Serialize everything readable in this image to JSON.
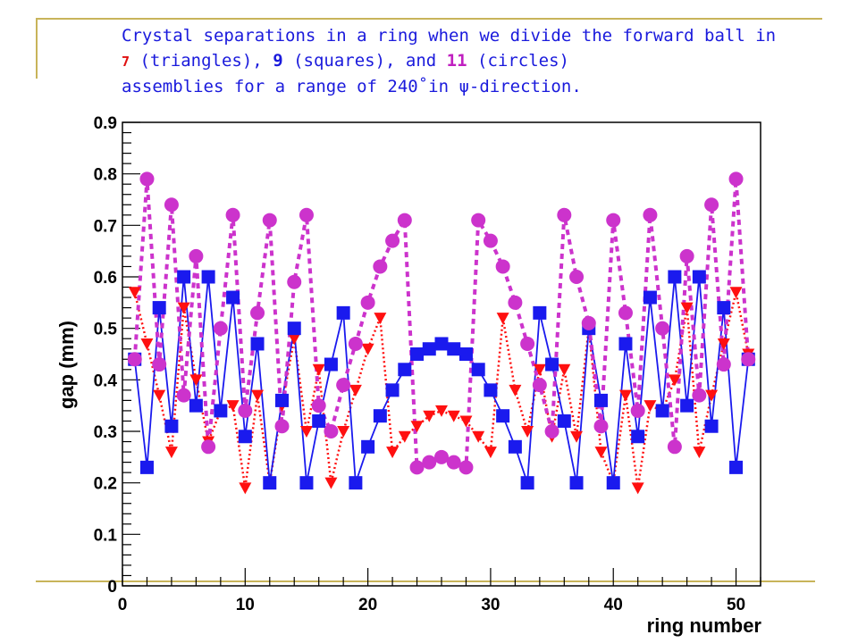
{
  "slide": {
    "title_line1": "Crystal separations in a ring when we divide the forward ball in",
    "title_n7": "7",
    "title_part2": " (triangles), ",
    "title_n9": "9",
    "title_part3": " (squares), and ",
    "title_n11": "11",
    "title_part4": " (circles)",
    "title_line3": "assemblies for a range of 240˚in ψ-direction."
  },
  "colors": {
    "triangles": "#ff1010",
    "squares": "#1a1aee",
    "circles": "#cc33cc",
    "frame": "#c8b45a"
  },
  "chart_data": {
    "type": "scatter",
    "xlabel": "ring number",
    "ylabel": "gap (mm)",
    "xlim": [
      0,
      52
    ],
    "ylim": [
      0,
      0.9
    ],
    "xticks": [
      0,
      10,
      20,
      30,
      40,
      50
    ],
    "yticks": [
      0,
      0.1,
      0.2,
      0.3,
      0.4,
      0.5,
      0.6,
      0.7,
      0.8,
      0.9
    ],
    "grid": false,
    "series": [
      {
        "marker": "triangle",
        "line": "dotted",
        "x": [
          1,
          2,
          3,
          4,
          5,
          6,
          7,
          8,
          9,
          10,
          11,
          12,
          13,
          14,
          15,
          16,
          17,
          18,
          19,
          20,
          21,
          22,
          23,
          24,
          25,
          26,
          27,
          28,
          29,
          30,
          31,
          32,
          33,
          34,
          35,
          36,
          37,
          38,
          39,
          40,
          41,
          42,
          43,
          44,
          45,
          46,
          47,
          48,
          49,
          50,
          51
        ],
        "values": [
          0.57,
          0.47,
          0.37,
          0.26,
          0.54,
          0.4,
          0.28,
          0.34,
          0.35,
          0.19,
          0.37,
          0.2,
          0.35,
          0.48,
          0.3,
          0.42,
          0.2,
          0.3,
          0.38,
          0.46,
          0.52,
          0.26,
          0.29,
          0.31,
          0.33,
          0.34,
          0.33,
          0.32,
          0.29,
          0.26,
          0.52,
          0.38,
          0.3,
          0.42,
          0.29,
          0.42,
          0.29,
          0.5,
          0.26,
          0.2,
          0.37,
          0.19,
          0.35,
          0.34,
          0.4,
          0.54,
          0.26,
          0.37,
          0.47,
          0.57,
          0.45
        ]
      },
      {
        "marker": "square",
        "line": "solid",
        "x": [
          1,
          2,
          3,
          4,
          5,
          6,
          7,
          8,
          9,
          10,
          11,
          12,
          13,
          14,
          15,
          16,
          17,
          18,
          19,
          20,
          21,
          22,
          23,
          24,
          25,
          26,
          27,
          28,
          29,
          30,
          31,
          32,
          33,
          34,
          35,
          36,
          37,
          38,
          39,
          40,
          41,
          42,
          43,
          44,
          45,
          46,
          47,
          48,
          49,
          50,
          51
        ],
        "values": [
          0.44,
          0.23,
          0.54,
          0.31,
          0.6,
          0.35,
          0.6,
          0.34,
          0.56,
          0.29,
          0.47,
          0.2,
          0.36,
          0.5,
          0.2,
          0.32,
          0.43,
          0.53,
          0.2,
          0.27,
          0.33,
          0.38,
          0.42,
          0.45,
          0.46,
          0.47,
          0.46,
          0.45,
          0.42,
          0.38,
          0.33,
          0.27,
          0.2,
          0.53,
          0.43,
          0.32,
          0.2,
          0.5,
          0.36,
          0.2,
          0.47,
          0.29,
          0.56,
          0.34,
          0.6,
          0.35,
          0.6,
          0.31,
          0.54,
          0.23,
          0.44
        ]
      },
      {
        "marker": "circle",
        "line": "dashed",
        "x": [
          1,
          2,
          3,
          4,
          5,
          6,
          7,
          8,
          9,
          10,
          11,
          12,
          13,
          14,
          15,
          16,
          17,
          18,
          19,
          20,
          21,
          22,
          23,
          24,
          25,
          26,
          27,
          28,
          29,
          30,
          31,
          32,
          33,
          34,
          35,
          36,
          37,
          38,
          39,
          40,
          41,
          42,
          43,
          44,
          45,
          46,
          47,
          48,
          49,
          50,
          51
        ],
        "values": [
          0.44,
          0.79,
          0.43,
          0.74,
          0.37,
          0.64,
          0.27,
          0.5,
          0.72,
          0.34,
          0.53,
          0.71,
          0.31,
          0.59,
          0.72,
          0.35,
          0.3,
          0.39,
          0.47,
          0.55,
          0.62,
          0.67,
          0.71,
          0.23,
          0.24,
          0.25,
          0.24,
          0.23,
          0.71,
          0.67,
          0.62,
          0.55,
          0.47,
          0.39,
          0.3,
          0.72,
          0.6,
          0.51,
          0.31,
          0.71,
          0.53,
          0.34,
          0.72,
          0.5,
          0.27,
          0.64,
          0.37,
          0.74,
          0.43,
          0.79,
          0.44
        ]
      }
    ]
  }
}
